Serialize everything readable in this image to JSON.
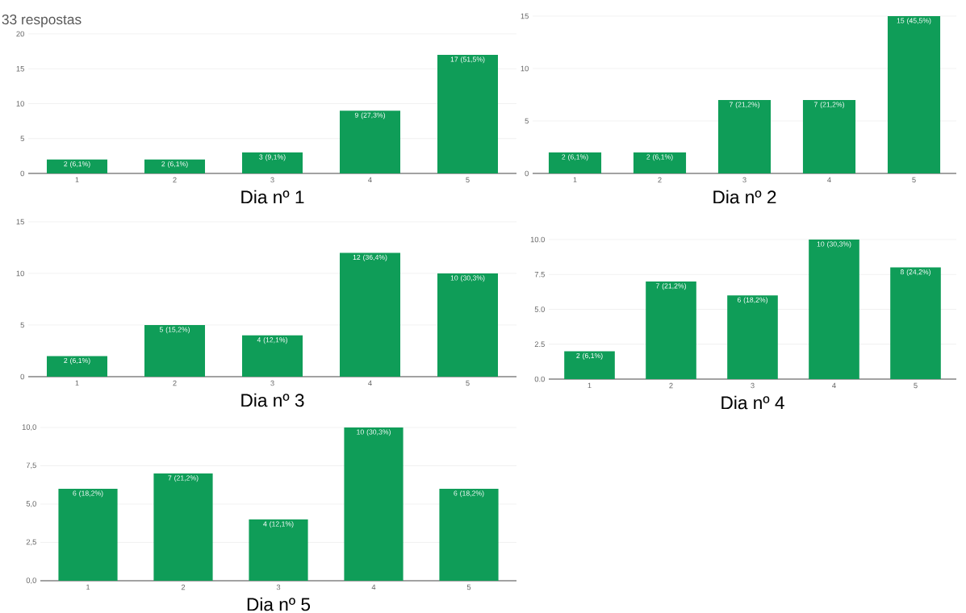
{
  "chart_data": [
    {
      "type": "bar",
      "subtitle": "33 respostas",
      "title": "Dia nº 1",
      "categories": [
        "1",
        "2",
        "3",
        "4",
        "5"
      ],
      "values": [
        2,
        2,
        3,
        9,
        17
      ],
      "value_labels": [
        "2 (6,1%)",
        "2 (6,1%)",
        "3 (9,1%)",
        "9 (27,3%)",
        "17 (51,5%)"
      ],
      "color": "#0f9d58",
      "ylim": [
        0,
        20
      ],
      "yticks": [
        0,
        5,
        10,
        15,
        20
      ],
      "grid": "y"
    },
    {
      "type": "bar",
      "title": "Dia nº 2",
      "categories": [
        "1",
        "2",
        "3",
        "4",
        "5"
      ],
      "values": [
        2,
        2,
        7,
        7,
        15
      ],
      "value_labels": [
        "2 (6,1%)",
        "2 (6,1%)",
        "7 (21,2%)",
        "7 (21,2%)",
        "15 (45,5%)"
      ],
      "color": "#0f9d58",
      "ylim": [
        0,
        15
      ],
      "yticks": [
        0,
        5,
        10,
        15
      ],
      "grid": "y"
    },
    {
      "type": "bar",
      "title": "Dia nº 3",
      "categories": [
        "1",
        "2",
        "3",
        "4",
        "5"
      ],
      "values": [
        2,
        5,
        4,
        12,
        10
      ],
      "value_labels": [
        "2 (6,1%)",
        "5 (15,2%)",
        "4 (12,1%)",
        "12 (36,4%)",
        "10 (30,3%)"
      ],
      "color": "#0f9d58",
      "ylim": [
        0,
        15
      ],
      "yticks": [
        0,
        5,
        10,
        15
      ],
      "grid": "y"
    },
    {
      "type": "bar",
      "title": "Dia nº 4",
      "categories": [
        "1",
        "2",
        "3",
        "4",
        "5"
      ],
      "values": [
        2,
        7,
        6,
        10,
        8
      ],
      "value_labels": [
        "2 (6,1%)",
        "7 (21,2%)",
        "6 (18,2%)",
        "10 (30,3%)",
        "8 (24,2%)"
      ],
      "color": "#0f9d58",
      "ylim": [
        0,
        10
      ],
      "yticks": [
        {
          "value": 0,
          "label": "0.0"
        },
        {
          "value": 2.5,
          "label": "2.5"
        },
        {
          "value": 5,
          "label": "5.0"
        },
        {
          "value": 7.5,
          "label": "7.5"
        },
        {
          "value": 10,
          "label": "10.0"
        }
      ],
      "grid": "y"
    },
    {
      "type": "bar",
      "title": "Dia nº 5",
      "categories": [
        "1",
        "2",
        "3",
        "4",
        "5"
      ],
      "values": [
        6,
        7,
        4,
        10,
        6
      ],
      "value_labels": [
        "6 (18,2%)",
        "7 (21,2%)",
        "4 (12,1%)",
        "10 (30,3%)",
        "6 (18,2%)"
      ],
      "color": "#0f9d58",
      "ylim": [
        0,
        10
      ],
      "yticks": [
        {
          "value": 0,
          "label": "0,0"
        },
        {
          "value": 2.5,
          "label": "2,5"
        },
        {
          "value": 5,
          "label": "5,0"
        },
        {
          "value": 7.5,
          "label": "7,5"
        },
        {
          "value": 10,
          "label": "10,0"
        }
      ],
      "grid": "y"
    }
  ]
}
